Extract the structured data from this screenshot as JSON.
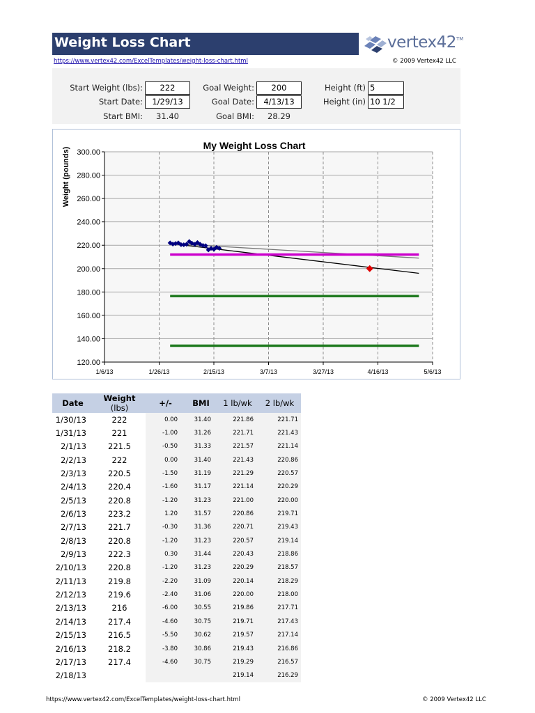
{
  "header": {
    "title": "Weight Loss Chart",
    "logo_text": "vertex42",
    "logo_tm": "TM",
    "url": "https://www.vertex42.com/ExcelTemplates/weight-loss-chart.html",
    "copyright": "© 2009 Vertex42 LLC"
  },
  "inputs": {
    "start_weight_label": "Start Weight (lbs):",
    "start_weight": "222",
    "start_date_label": "Start Date:",
    "start_date": "1/29/13",
    "start_bmi_label": "Start BMI:",
    "start_bmi": "31.40",
    "goal_weight_label": "Goal Weight:",
    "goal_weight": "200",
    "goal_date_label": "Goal Date:",
    "goal_date": "4/13/13",
    "goal_bmi_label": "Goal BMI:",
    "goal_bmi": "28.29",
    "height_ft_label": "Height (ft)",
    "height_ft": "5",
    "height_in_label": "Height (in)",
    "height_in": "10 1/2"
  },
  "colors": {
    "title_bar": "#2c3f6e",
    "weight_series": "#000080",
    "goal_marker": "#e00000",
    "magenta_line": "#cc00cc",
    "green_line": "#1f7a1f",
    "table_header": "#c5d0e4"
  },
  "chart_data": {
    "type": "line",
    "title": "My Weight Loss Chart",
    "ylabel": "Weight (pounds)",
    "xlabel": "",
    "ylim": [
      120,
      300
    ],
    "xlim": [
      "1/6/13",
      "5/6/13"
    ],
    "x_ticks": [
      "1/6/13",
      "1/26/13",
      "2/15/13",
      "3/7/13",
      "3/27/13",
      "4/16/13",
      "5/6/13"
    ],
    "y_ticks": [
      "120.00",
      "140.00",
      "160.00",
      "180.00",
      "200.00",
      "220.00",
      "240.00",
      "260.00",
      "280.00",
      "300.00"
    ],
    "grid": true,
    "series": [
      {
        "x": [
          "1/30/13",
          "1/31/13",
          "2/1/13",
          "2/2/13",
          "2/3/13",
          "2/4/13",
          "2/5/13",
          "2/6/13",
          "2/7/13",
          "2/8/13",
          "2/9/13",
          "2/10/13",
          "2/11/13",
          "2/12/13",
          "2/13/13",
          "2/14/13",
          "2/15/13",
          "2/16/13",
          "2/17/13"
        ],
        "values": [
          222,
          221,
          221.5,
          222,
          220.5,
          220.4,
          220.8,
          223.2,
          221.7,
          220.8,
          222.3,
          220.8,
          219.8,
          219.6,
          216,
          217.4,
          216.5,
          218.2,
          217.4
        ]
      },
      {
        "x": [
          "1/30/13",
          "5/1/13"
        ],
        "values": [
          221.5,
          196
        ]
      },
      {
        "x": [
          "1/30/13",
          "5/1/13"
        ],
        "values": [
          221.5,
          209
        ]
      },
      {
        "x": [
          "1/30/13",
          "5/1/13"
        ],
        "values": [
          212,
          212
        ]
      },
      {
        "x": [
          "1/30/13",
          "5/1/13"
        ],
        "values": [
          176.5,
          176.5
        ]
      },
      {
        "x": [
          "1/30/13",
          "5/1/13"
        ],
        "values": [
          134,
          134
        ]
      }
    ],
    "goal_point": {
      "x": "4/13/13",
      "value": 200
    }
  },
  "table": {
    "headers": {
      "date": "Date",
      "weight_bold": "Weight",
      "weight_unit": "(lbs)",
      "plusminus": "+/-",
      "bmi": "BMI",
      "lb1": "1 lb/wk",
      "lb2": "2 lb/wk"
    },
    "rows": [
      [
        "1/30/13",
        "222",
        "0.00",
        "31.40",
        "221.86",
        "221.71"
      ],
      [
        "1/31/13",
        "221",
        "-1.00",
        "31.26",
        "221.71",
        "221.43"
      ],
      [
        "2/1/13",
        "221.5",
        "-0.50",
        "31.33",
        "221.57",
        "221.14"
      ],
      [
        "2/2/13",
        "222",
        "0.00",
        "31.40",
        "221.43",
        "220.86"
      ],
      [
        "2/3/13",
        "220.5",
        "-1.50",
        "31.19",
        "221.29",
        "220.57"
      ],
      [
        "2/4/13",
        "220.4",
        "-1.60",
        "31.17",
        "221.14",
        "220.29"
      ],
      [
        "2/5/13",
        "220.8",
        "-1.20",
        "31.23",
        "221.00",
        "220.00"
      ],
      [
        "2/6/13",
        "223.2",
        "1.20",
        "31.57",
        "220.86",
        "219.71"
      ],
      [
        "2/7/13",
        "221.7",
        "-0.30",
        "31.36",
        "220.71",
        "219.43"
      ],
      [
        "2/8/13",
        "220.8",
        "-1.20",
        "31.23",
        "220.57",
        "219.14"
      ],
      [
        "2/9/13",
        "222.3",
        "0.30",
        "31.44",
        "220.43",
        "218.86"
      ],
      [
        "2/10/13",
        "220.8",
        "-1.20",
        "31.23",
        "220.29",
        "218.57"
      ],
      [
        "2/11/13",
        "219.8",
        "-2.20",
        "31.09",
        "220.14",
        "218.29"
      ],
      [
        "2/12/13",
        "219.6",
        "-2.40",
        "31.06",
        "220.00",
        "218.00"
      ],
      [
        "2/13/13",
        "216",
        "-6.00",
        "30.55",
        "219.86",
        "217.71"
      ],
      [
        "2/14/13",
        "217.4",
        "-4.60",
        "30.75",
        "219.71",
        "217.43"
      ],
      [
        "2/15/13",
        "216.5",
        "-5.50",
        "30.62",
        "219.57",
        "217.14"
      ],
      [
        "2/16/13",
        "218.2",
        "-3.80",
        "30.86",
        "219.43",
        "216.86"
      ],
      [
        "2/17/13",
        "217.4",
        "-4.60",
        "30.75",
        "219.29",
        "216.57"
      ],
      [
        "2/18/13",
        "",
        "",
        "",
        "219.14",
        "216.29"
      ]
    ]
  },
  "footer": {
    "url": "https://www.vertex42.com/ExcelTemplates/weight-loss-chart.html",
    "copyright": "© 2009 Vertex42 LLC"
  }
}
